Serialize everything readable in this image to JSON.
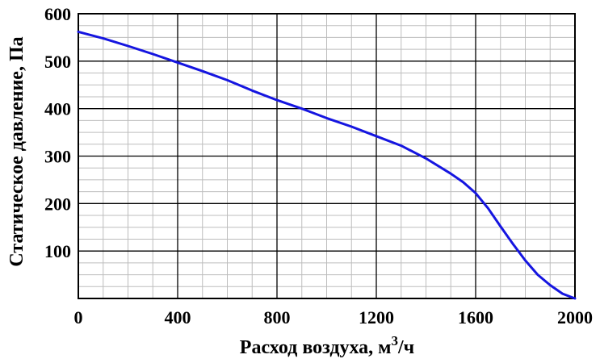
{
  "chart_data": {
    "type": "line",
    "title": "",
    "xlabel_prefix": "Расход воздуха, м",
    "xlabel_sup": "3",
    "xlabel_suffix": "/ч",
    "ylabel": "Статическое давление, Па",
    "xlim": [
      0,
      2000
    ],
    "ylim": [
      0,
      600
    ],
    "x_ticks": [
      0,
      400,
      800,
      1200,
      1600,
      2000
    ],
    "y_ticks": [
      100,
      200,
      300,
      400,
      500,
      600
    ],
    "x_minor_step": 100,
    "y_minor_step": 25,
    "grid": true,
    "legend": "none",
    "line_color": "#1515e0",
    "series": [
      {
        "x": [
          0,
          100,
          200,
          300,
          400,
          500,
          600,
          700,
          800,
          900,
          1000,
          1100,
          1200,
          1300,
          1400,
          1500,
          1550,
          1600,
          1650,
          1700,
          1750,
          1800,
          1850,
          1900,
          1950,
          2000
        ],
        "y": [
          562,
          548,
          532,
          515,
          497,
          479,
          460,
          438,
          418,
          400,
          380,
          362,
          342,
          322,
          295,
          263,
          245,
          222,
          190,
          152,
          115,
          80,
          50,
          28,
          10,
          0
        ]
      }
    ]
  }
}
